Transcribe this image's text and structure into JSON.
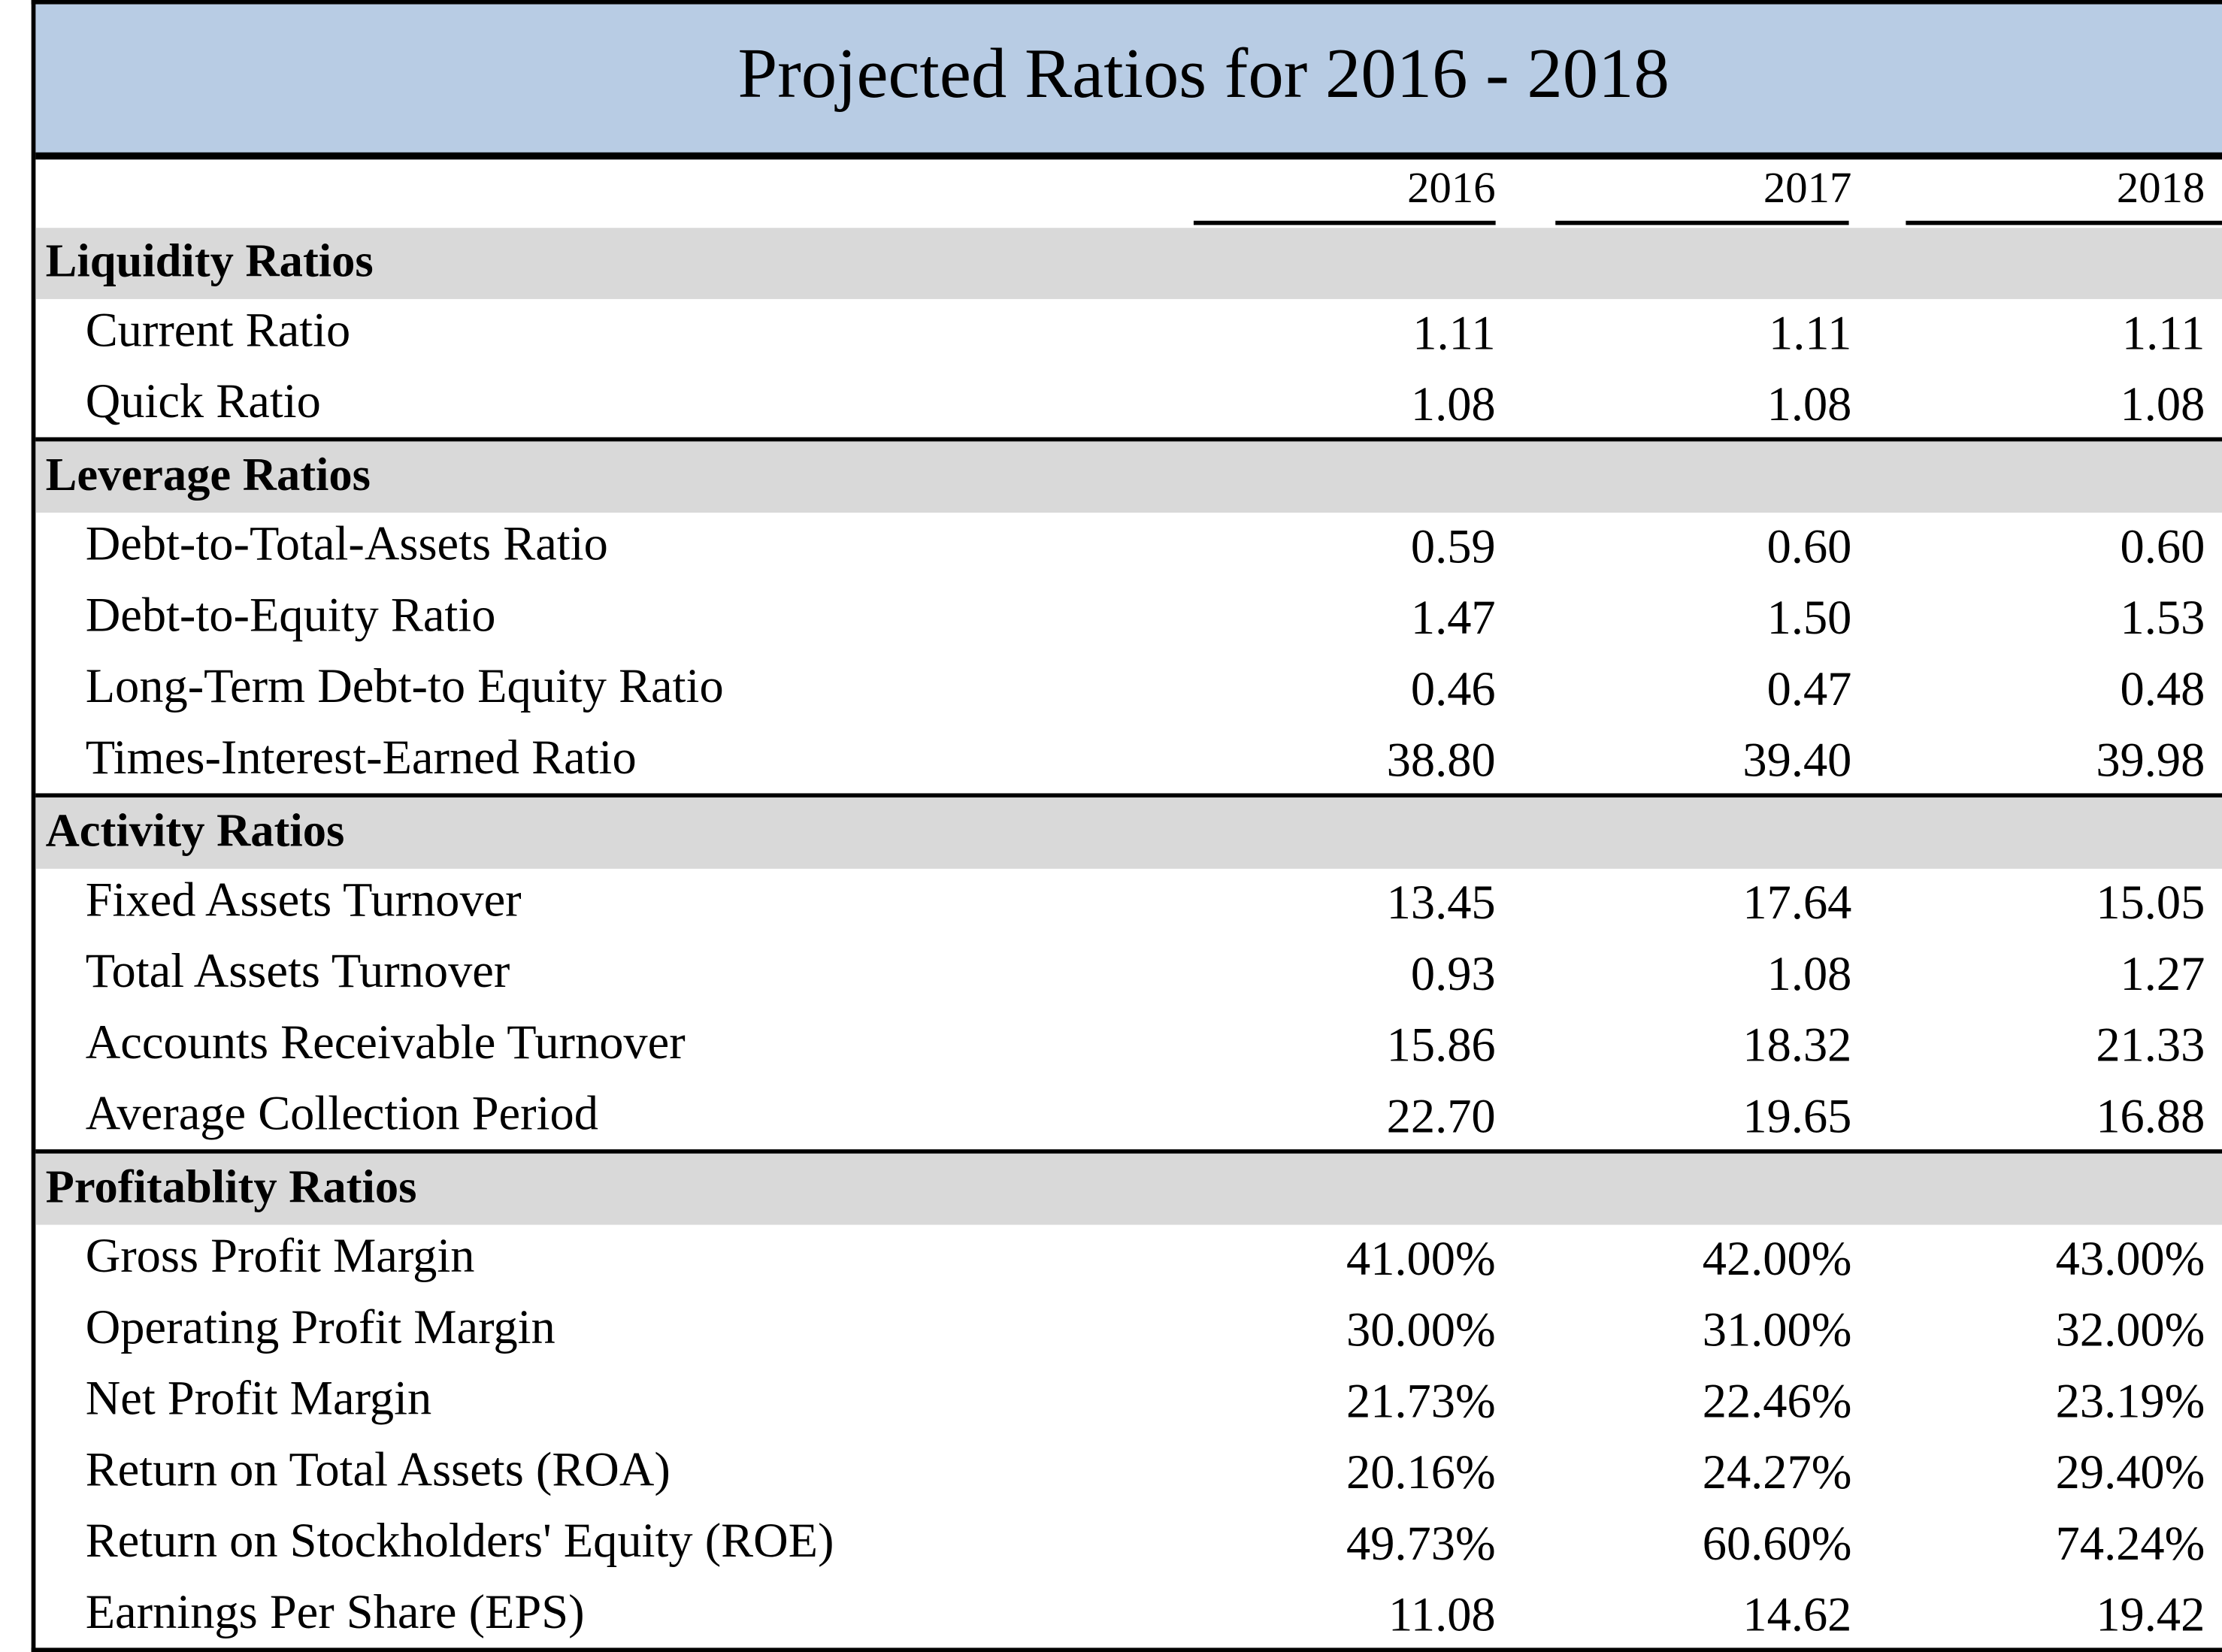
{
  "title": "Projected Ratios for 2016 - 2018",
  "columns": [
    "2016",
    "2017",
    "2018"
  ],
  "sections": [
    {
      "name": "Liquidity Ratios",
      "rows": [
        {
          "label": "Current Ratio",
          "values": [
            "1.11",
            "1.11",
            "1.11"
          ]
        },
        {
          "label": "Quick Ratio",
          "values": [
            "1.08",
            "1.08",
            "1.08"
          ]
        }
      ]
    },
    {
      "name": "Leverage Ratios",
      "rows": [
        {
          "label": "Debt-to-Total-Assets Ratio",
          "values": [
            "0.59",
            "0.60",
            "0.60"
          ]
        },
        {
          "label": "Debt-to-Equity Ratio",
          "values": [
            "1.47",
            "1.50",
            "1.53"
          ]
        },
        {
          "label": "Long-Term Debt-to Equity Ratio",
          "values": [
            "0.46",
            "0.47",
            "0.48"
          ]
        },
        {
          "label": "Times-Interest-Earned Ratio",
          "values": [
            "38.80",
            "39.40",
            "39.98"
          ]
        }
      ]
    },
    {
      "name": "Activity Ratios",
      "rows": [
        {
          "label": "Fixed Assets Turnover",
          "values": [
            "13.45",
            "17.64",
            "15.05"
          ]
        },
        {
          "label": "Total Assets Turnover",
          "values": [
            "0.93",
            "1.08",
            "1.27"
          ]
        },
        {
          "label": "Accounts Receivable Turnover",
          "values": [
            "15.86",
            "18.32",
            "21.33"
          ]
        },
        {
          "label": "Average Collection Period",
          "values": [
            "22.70",
            "19.65",
            "16.88"
          ]
        }
      ]
    },
    {
      "name": "Profitablity Ratios",
      "rows": [
        {
          "label": "Gross Profit Margin",
          "values": [
            "41.00%",
            "42.00%",
            "43.00%"
          ]
        },
        {
          "label": "Operating Profit Margin",
          "values": [
            "30.00%",
            "31.00%",
            "32.00%"
          ]
        },
        {
          "label": "Net Profit Margin",
          "values": [
            "21.73%",
            "22.46%",
            "23.19%"
          ]
        },
        {
          "label": "Return on Total Assets (ROA)",
          "values": [
            "20.16%",
            "24.27%",
            "29.40%"
          ]
        },
        {
          "label": "Return on Stockholders' Equity (ROE)",
          "values": [
            "49.73%",
            "60.60%",
            "74.24%"
          ]
        },
        {
          "label": "Earnings Per Share (EPS)",
          "values": [
            "11.08",
            "14.62",
            "19.42"
          ]
        }
      ]
    }
  ]
}
